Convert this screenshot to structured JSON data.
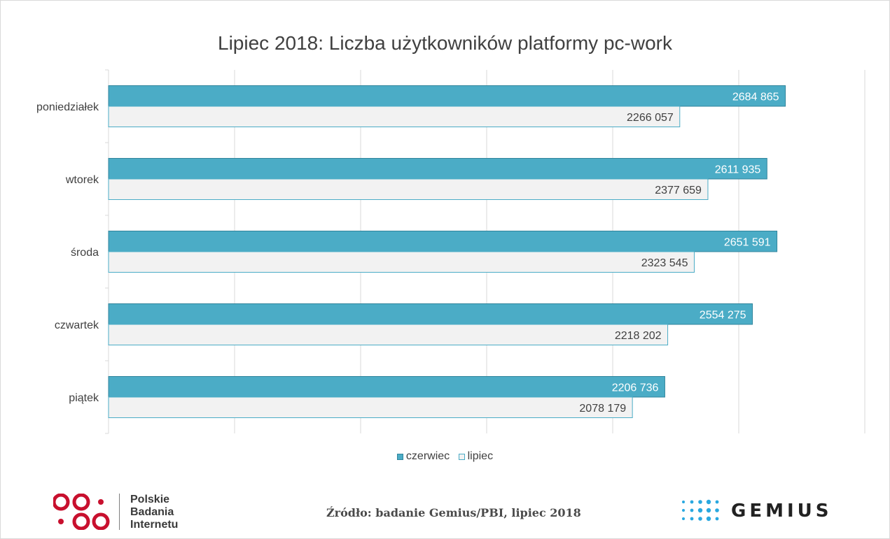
{
  "chart_data": {
    "type": "bar",
    "orientation": "horizontal",
    "title": "Lipiec 2018: Liczba użytkowników platformy pc-work",
    "categories": [
      "poniedziałek",
      "wtorek",
      "środa",
      "czwartek",
      "piątek"
    ],
    "series": [
      {
        "name": "czerwiec",
        "values": [
          2684865,
          2611935,
          2651591,
          2554275,
          2206736
        ],
        "labels": [
          "2684 865",
          "2611 935",
          "2651 591",
          "2554 275",
          "2206 736"
        ],
        "color": "#4bacc6",
        "label_color": "#ffffff"
      },
      {
        "name": "lipiec",
        "values": [
          2266057,
          2377659,
          2323545,
          2218202,
          2078179
        ],
        "labels": [
          "2266 057",
          "2377 659",
          "2323 545",
          "2218 202",
          "2078 179"
        ],
        "color": "#f2f2f2",
        "label_color": "#404040"
      }
    ],
    "xlim": [
      0,
      3000000
    ],
    "x_gridlines": true,
    "legend_position": "bottom"
  },
  "footer": {
    "brand_left_lines": [
      "Polskie",
      "Badania",
      "Internetu"
    ],
    "source": "Źródło: badanie Gemius/PBI, lipiec 2018",
    "brand_right": "GEMIUS"
  },
  "colors": {
    "accent": "#4bacc6",
    "logo_red": "#c8102e",
    "gemius_blue": "#29a8e0"
  }
}
